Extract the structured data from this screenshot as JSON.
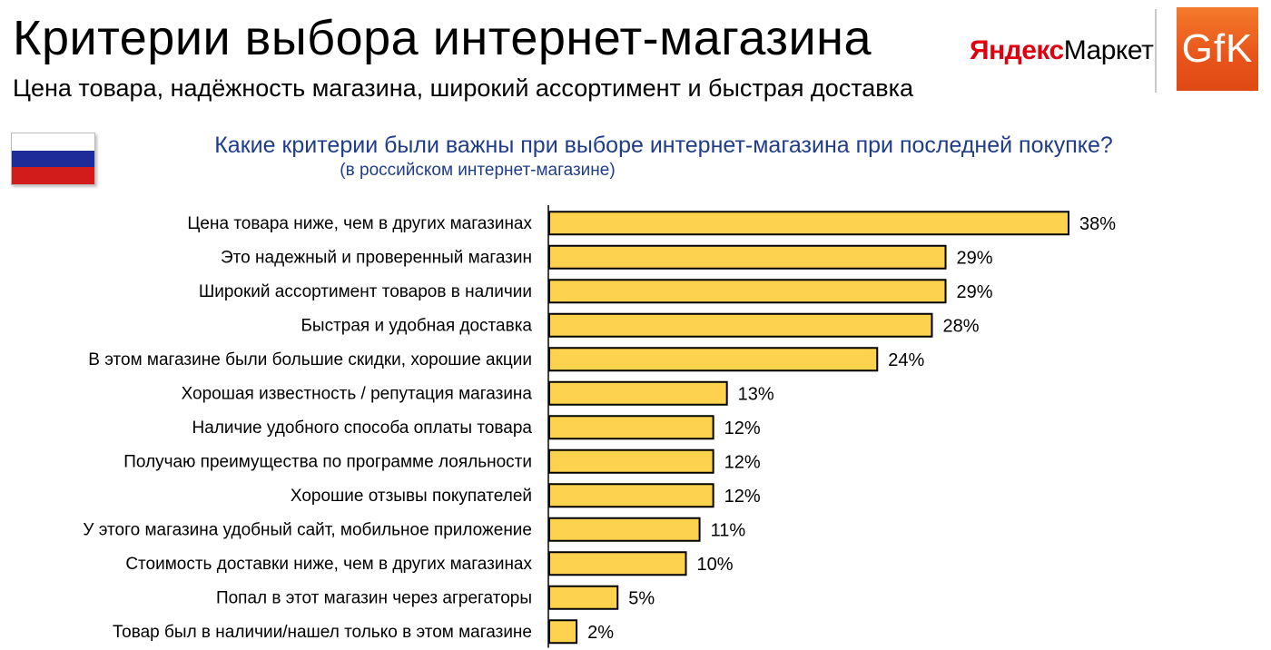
{
  "header": {
    "title": "Критерии выбора интернет-магазина",
    "subtitle": "Цена товара, надёжность магазина, широкий ассортимент и быстрая доставка"
  },
  "logos": {
    "yandex_brand": "Яндекс",
    "yandex_product": "Маркет",
    "gfk": "GfK"
  },
  "question": {
    "text": "Какие критерии были важны при выборе интернет-магазина при последней покупке?",
    "note": "(в российском интернет-магазине)"
  },
  "colors": {
    "bar": "#fdd24e",
    "question_text": "#1f3d8a",
    "yandex_red": "#e0000f",
    "gfk_orange": "#e8541a"
  },
  "chart_data": {
    "type": "bar",
    "orientation": "horizontal",
    "categories": [
      "Цена товара ниже, чем в других магазинах",
      "Это надежный и проверенный магазин",
      "Широкий ассортимент товаров в наличии",
      "Быстрая и удобная доставка",
      "В этом магазине были большие скидки, хорошие акции",
      "Хорошая известность / репутация магазина",
      "Наличие удобного способа оплаты товара",
      "Получаю преимущества по программе лояльности",
      "Хорошие отзывы покупателей",
      "У этого магазина удобный сайт, мобильное приложение",
      "Стоимость доставки ниже, чем в других магазинах",
      "Попал в этот магазин через агрегаторы",
      "Товар был в наличии/нашел только в этом магазине"
    ],
    "values": [
      38,
      29,
      29,
      28,
      24,
      13,
      12,
      12,
      12,
      11,
      10,
      5,
      2
    ],
    "value_labels": [
      "38%",
      "29%",
      "29%",
      "28%",
      "24%",
      "13%",
      "12%",
      "12%",
      "12%",
      "11%",
      "10%",
      "5%",
      "2%"
    ],
    "unit": "%",
    "xlim": [
      0,
      38
    ],
    "grid": false
  }
}
